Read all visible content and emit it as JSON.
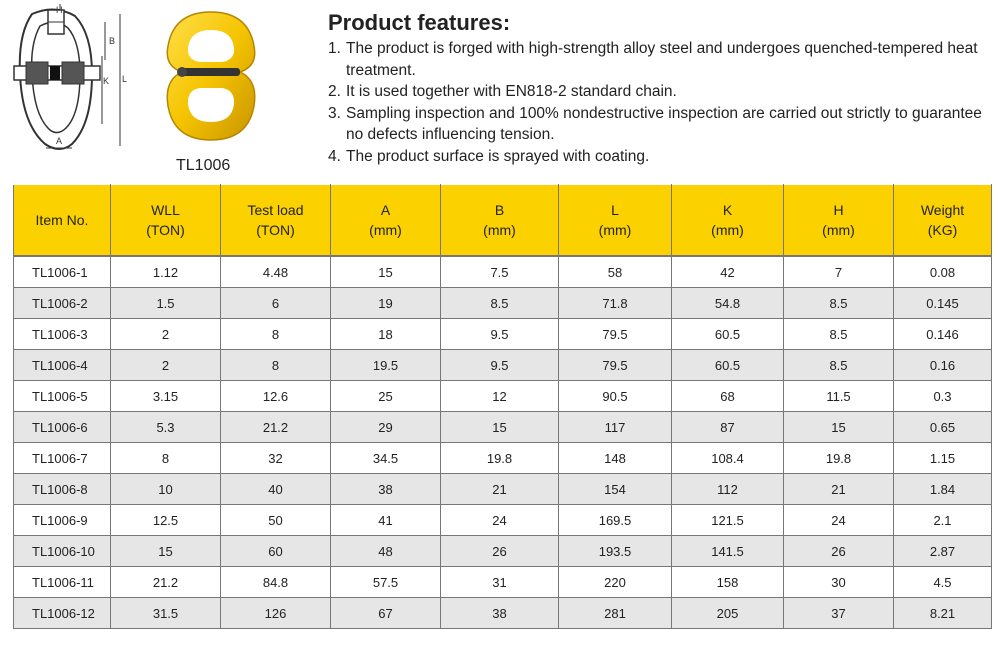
{
  "model": "TL1006",
  "diagram_labels": {
    "h": "H",
    "b": "B",
    "k": "K",
    "l": "L",
    "a": "A"
  },
  "features": {
    "title": "Product features:",
    "items": [
      {
        "num": "1.",
        "text": "The product is forged with high-strength alloy steel and undergoes quenched-tempered heat treatment."
      },
      {
        "num": "2.",
        "text": "It is used together with EN818-2 standard chain."
      },
      {
        "num": "3.",
        "text": "Sampling inspection and 100% nondestructive inspection are carried out strictly to guarantee no defects influencing tension."
      },
      {
        "num": "4.",
        "text": "The product surface is sprayed with coating."
      }
    ]
  },
  "table": {
    "headers": [
      {
        "line1": "Item No.",
        "line2": ""
      },
      {
        "line1": "WLL",
        "line2": "(TON)"
      },
      {
        "line1": "Test load",
        "line2": "(TON)"
      },
      {
        "line1": "A",
        "line2": "(mm)"
      },
      {
        "line1": "B",
        "line2": "(mm)"
      },
      {
        "line1": "L",
        "line2": "(mm)"
      },
      {
        "line1": "K",
        "line2": "(mm)"
      },
      {
        "line1": "H",
        "line2": "(mm)"
      },
      {
        "line1": "Weight",
        "line2": "(KG)"
      }
    ],
    "rows": [
      [
        "TL1006-1",
        "1.12",
        "4.48",
        "15",
        "7.5",
        "58",
        "42",
        "7",
        "0.08"
      ],
      [
        "TL1006-2",
        "1.5",
        "6",
        "19",
        "8.5",
        "71.8",
        "54.8",
        "8.5",
        "0.145"
      ],
      [
        "TL1006-3",
        "2",
        "8",
        "18",
        "9.5",
        "79.5",
        "60.5",
        "8.5",
        "0.146"
      ],
      [
        "TL1006-4",
        "2",
        "8",
        "19.5",
        "9.5",
        "79.5",
        "60.5",
        "8.5",
        "0.16"
      ],
      [
        "TL1006-5",
        "3.15",
        "12.6",
        "25",
        "12",
        "90.5",
        "68",
        "11.5",
        "0.3"
      ],
      [
        "TL1006-6",
        "5.3",
        "21.2",
        "29",
        "15",
        "117",
        "87",
        "15",
        "0.65"
      ],
      [
        "TL1006-7",
        "8",
        "32",
        "34.5",
        "19.8",
        "148",
        "108.4",
        "19.8",
        "1.15"
      ],
      [
        "TL1006-8",
        "10",
        "40",
        "38",
        "21",
        "154",
        "112",
        "21",
        "1.84"
      ],
      [
        "TL1006-9",
        "12.5",
        "50",
        "41",
        "24",
        "169.5",
        "121.5",
        "24",
        "2.1"
      ],
      [
        "TL1006-10",
        "15",
        "60",
        "48",
        "26",
        "193.5",
        "141.5",
        "26",
        "2.87"
      ],
      [
        "TL1006-11",
        "21.2",
        "84.8",
        "57.5",
        "31",
        "220",
        "158",
        "30",
        "4.5"
      ],
      [
        "TL1006-12",
        "31.5",
        "126",
        "67",
        "38",
        "281",
        "205",
        "37",
        "8.21"
      ]
    ]
  },
  "colors": {
    "header": "#fbd200",
    "stripe": "#e6e6e6",
    "product": "#f5c400"
  }
}
